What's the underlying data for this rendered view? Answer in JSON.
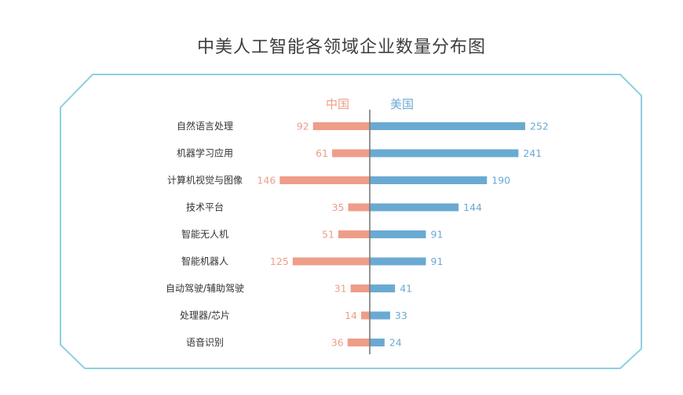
{
  "chart_data": {
    "type": "bar",
    "orientation": "horizontal-diverging",
    "title": "中美人工智能各领域企业数量分布图",
    "categories": [
      "自然语言处理",
      "机器学习应用",
      "计算机视觉与图像",
      "技术平台",
      "智能无人机",
      "智能机器人",
      "自动驾驶/辅助驾驶",
      "处理器/芯片",
      "语音识别"
    ],
    "series": [
      {
        "name": "中国",
        "values": [
          92,
          61,
          146,
          35,
          51,
          125,
          31,
          14,
          36
        ],
        "color": "#ee9d89",
        "direction": "left"
      },
      {
        "name": "美国",
        "values": [
          252,
          241,
          190,
          144,
          91,
          91,
          41,
          33,
          24
        ],
        "color": "#6aaad2",
        "direction": "right"
      }
    ],
    "xlim": [
      0,
      252
    ],
    "grid": false,
    "legend": "top-center",
    "frame_color": "#8ecfe2",
    "axis_color": "#7a7a7a"
  }
}
